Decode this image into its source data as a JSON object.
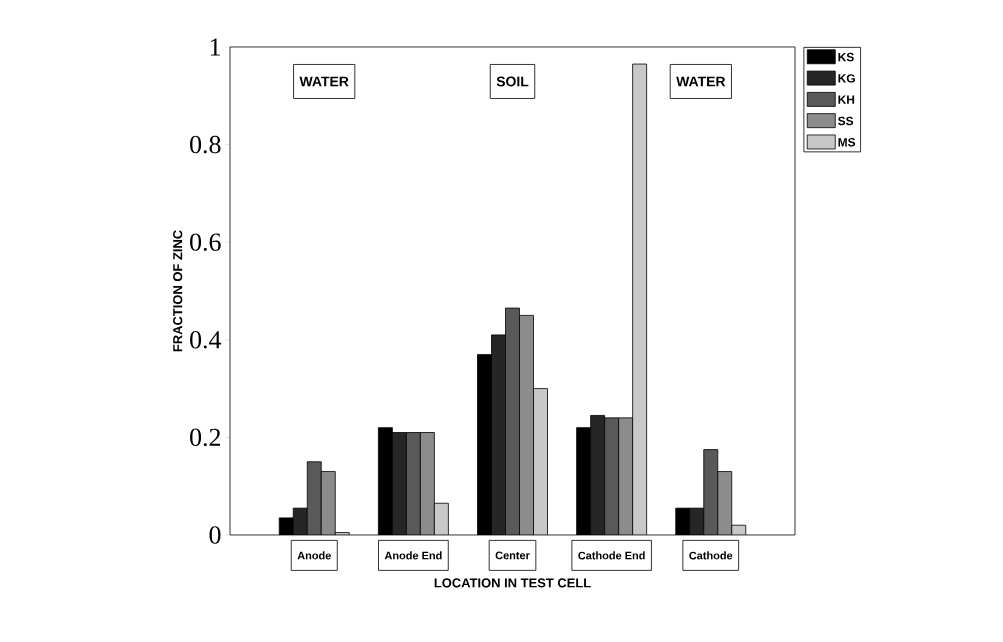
{
  "chart_data": {
    "type": "bar",
    "xlabel": "LOCATION IN TEST CELL",
    "ylabel": "FRACTION OF ZINC",
    "categories": [
      "Anode",
      "Anode End",
      "Center",
      "Cathode End",
      "Cathode"
    ],
    "series": [
      {
        "name": "KS",
        "color": "#000000",
        "values": [
          0.035,
          0.22,
          0.37,
          0.22,
          0.055
        ]
      },
      {
        "name": "KG",
        "color": "#262626",
        "values": [
          0.055,
          0.21,
          0.41,
          0.245,
          0.055
        ]
      },
      {
        "name": "KH",
        "color": "#595959",
        "values": [
          0.15,
          0.21,
          0.465,
          0.24,
          0.175
        ]
      },
      {
        "name": "SS",
        "color": "#8c8c8c",
        "values": [
          0.13,
          0.21,
          0.45,
          0.24,
          0.13
        ]
      },
      {
        "name": "MS",
        "color": "#c8c8c8",
        "values": [
          0.005,
          0.065,
          0.3,
          0.965,
          0.02
        ]
      }
    ],
    "ylim": [
      0,
      1
    ],
    "yticks": [
      0,
      0.2,
      0.4,
      0.6,
      0.8,
      1
    ],
    "legend": "top right",
    "grid": false,
    "annotations": [
      "WATER",
      "SOIL",
      "WATER"
    ]
  }
}
